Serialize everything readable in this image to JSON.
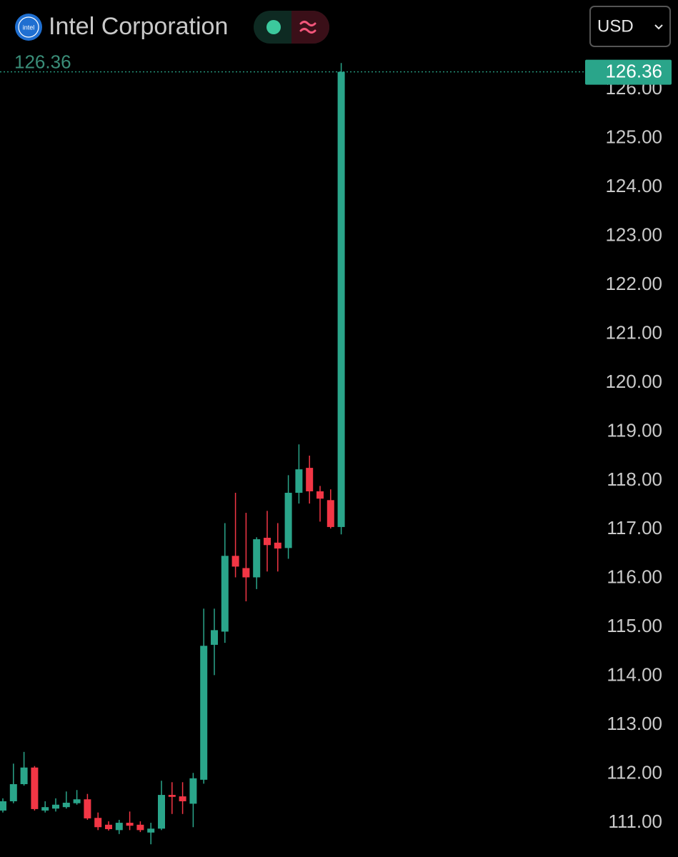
{
  "chart_data": {
    "type": "candlestick",
    "title": "Intel Corporation",
    "logo_text": "intel",
    "currency": "USD",
    "up_color": "#2aa58a",
    "down_color": "#f23645",
    "open": [
      111.25,
      111.44,
      111.79,
      112.13,
      111.25,
      111.29,
      111.32,
      111.4,
      111.48,
      111.1,
      110.96,
      110.85,
      111.0,
      110.96,
      110.8,
      110.88,
      111.57,
      111.54,
      111.39,
      111.88,
      114.64,
      114.91,
      116.46,
      116.21,
      116.02,
      116.83,
      116.73,
      116.62,
      117.75,
      118.26,
      117.78,
      117.6,
      117.05
    ],
    "high": [
      111.5,
      112.21,
      112.45,
      112.16,
      111.44,
      111.5,
      111.64,
      111.67,
      111.59,
      111.21,
      111.03,
      111.06,
      111.23,
      111.03,
      111.0,
      111.86,
      111.83,
      111.83,
      112.02,
      115.38,
      115.38,
      117.13,
      117.75,
      117.34,
      116.84,
      117.38,
      117.13,
      118.11,
      118.74,
      118.51,
      117.89,
      117.82,
      126.54
    ],
    "low": [
      111.21,
      111.4,
      111.76,
      111.25,
      111.21,
      111.23,
      111.29,
      111.37,
      111.06,
      110.85,
      110.84,
      110.77,
      110.85,
      110.81,
      110.56,
      110.85,
      111.18,
      111.18,
      110.91,
      111.8,
      114.02,
      114.68,
      116.02,
      115.53,
      115.78,
      116.14,
      116.14,
      116.4,
      117.53,
      117.53,
      117.16,
      117.02,
      116.9
    ],
    "close": [
      111.44,
      111.79,
      112.13,
      111.28,
      111.32,
      111.37,
      111.41,
      111.48,
      111.09,
      110.91,
      110.87,
      111.0,
      110.94,
      110.85,
      110.88,
      111.57,
      111.53,
      111.44,
      111.91,
      114.62,
      114.94,
      116.46,
      116.24,
      116.02,
      116.8,
      116.68,
      116.61,
      117.75,
      118.23,
      117.78,
      117.63,
      117.05,
      126.36
    ],
    "last_price": 126.36,
    "ylim": [
      110.3,
      127.83
    ],
    "yticks": [
      {
        "value": 111,
        "label": "111.00"
      },
      {
        "value": 112,
        "label": "112.00"
      },
      {
        "value": 113,
        "label": "113.00"
      },
      {
        "value": 114,
        "label": "114.00"
      },
      {
        "value": 115,
        "label": "115.00"
      },
      {
        "value": 116,
        "label": "116.00"
      },
      {
        "value": 117,
        "label": "117.00"
      },
      {
        "value": 118,
        "label": "118.00"
      },
      {
        "value": 119,
        "label": "119.00"
      },
      {
        "value": 120,
        "label": "120.00"
      },
      {
        "value": 121,
        "label": "121.00"
      },
      {
        "value": 122,
        "label": "122.00"
      },
      {
        "value": 123,
        "label": "123.00"
      },
      {
        "value": 124,
        "label": "124.00"
      },
      {
        "value": 125,
        "label": "125.00"
      },
      {
        "value": 126,
        "label": "126.00"
      }
    ]
  }
}
